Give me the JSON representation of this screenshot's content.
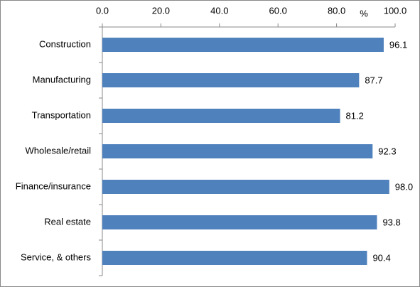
{
  "chart_data": {
    "type": "hbar",
    "unit_label": "%",
    "categories": [
      "Construction",
      "Manufacturing",
      "Transportation",
      "Wholesale/retail",
      "Finance/insurance",
      "Real estate",
      "Service, & others"
    ],
    "values": [
      96.1,
      87.7,
      81.2,
      92.3,
      98.0,
      93.8,
      90.4
    ],
    "value_labels": [
      "96.1",
      "87.7",
      "81.2",
      "92.3",
      "98.0",
      "93.8",
      "90.4"
    ],
    "color": "#4f81bd",
    "label_color": "#ff0000",
    "xlim": [
      0,
      100
    ],
    "xticks": [
      {
        "value": 0,
        "label": "0.0"
      },
      {
        "value": 20,
        "label": "20.0"
      },
      {
        "value": 40,
        "label": "40.0"
      },
      {
        "value": 60,
        "label": "60.0"
      },
      {
        "value": 80,
        "label": "80.0"
      },
      {
        "value": 100,
        "label": "100.0"
      }
    ],
    "grid": false
  }
}
